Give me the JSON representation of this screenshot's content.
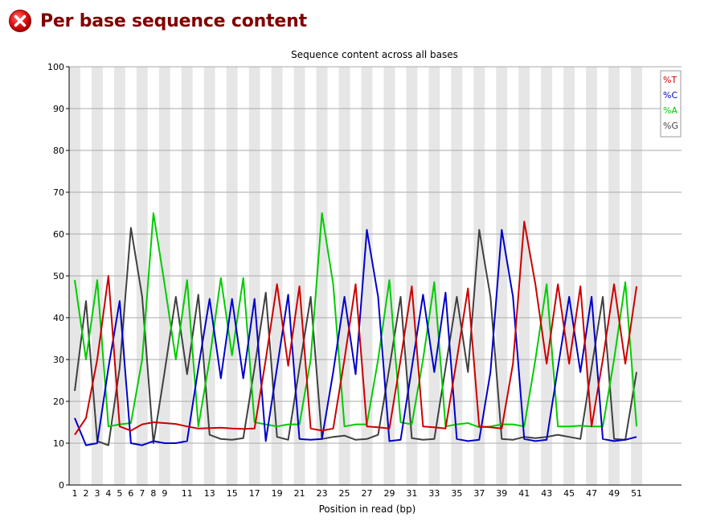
{
  "header": {
    "title": "Per base sequence content",
    "status_icon": "error-icon",
    "status_color": "#cc0000",
    "title_color": "#800000"
  },
  "chart_data": {
    "type": "line",
    "title": "Sequence content across all bases",
    "xlabel": "Position in read (bp)",
    "ylabel": "",
    "ylim": [
      0,
      100
    ],
    "yticks": [
      0,
      10,
      20,
      30,
      40,
      50,
      60,
      70,
      80,
      90,
      100
    ],
    "x": [
      1,
      2,
      3,
      4,
      5,
      6,
      7,
      8,
      9,
      10,
      11,
      12,
      13,
      14,
      15,
      16,
      17,
      18,
      19,
      20,
      21,
      22,
      23,
      24,
      25,
      26,
      27,
      28,
      29,
      30,
      31,
      32,
      33,
      34,
      35,
      36,
      37,
      38,
      39,
      40,
      41,
      42,
      43,
      44,
      45,
      46,
      47,
      48,
      49,
      50,
      51
    ],
    "xtick_labels": [
      "1",
      "2",
      "3",
      "4",
      "5",
      "6",
      "7",
      "8",
      "9",
      "11",
      "13",
      "15",
      "17",
      "19",
      "21",
      "23",
      "25",
      "27",
      "29",
      "31",
      "33",
      "35",
      "37",
      "39",
      "41",
      "43",
      "45",
      "47",
      "49",
      "51"
    ],
    "xtick_positions": [
      1,
      2,
      3,
      4,
      5,
      6,
      7,
      8,
      9,
      11,
      13,
      15,
      17,
      19,
      21,
      23,
      25,
      27,
      29,
      31,
      33,
      35,
      37,
      39,
      41,
      43,
      45,
      47,
      49,
      51
    ],
    "grid": true,
    "legend_position": "top-right",
    "band_colors": [
      "#e6e6e6",
      "#ffffff"
    ],
    "series": [
      {
        "name": "%T",
        "color": "#cc0000",
        "values": [
          12,
          16,
          30,
          50,
          14,
          13,
          14.5,
          15,
          14.8,
          14.6,
          14,
          13.5,
          13.6,
          13.7,
          13.5,
          13.4,
          13.5,
          30,
          48,
          28.5,
          47.5,
          13.5,
          13,
          13.5,
          30,
          48,
          14,
          13.8,
          13.5,
          30,
          47.5,
          14,
          13.8,
          13.5,
          30,
          47,
          14,
          13.8,
          13.5,
          29,
          63,
          48,
          29,
          48,
          29,
          47.5,
          14,
          30,
          48,
          29,
          47.5
        ]
      },
      {
        "name": "%C",
        "color": "#0000cc",
        "values": [
          16,
          9.5,
          10,
          28,
          44,
          10,
          9.5,
          10.5,
          10,
          10,
          10.5,
          28,
          44.5,
          25.5,
          44.5,
          25.5,
          44.5,
          10.5,
          28,
          45.5,
          11,
          10.8,
          11,
          27,
          45,
          26.5,
          61,
          45,
          10.5,
          10.8,
          28,
          45.5,
          27,
          46,
          11,
          10.5,
          10.8,
          27,
          61,
          45,
          11,
          10.5,
          10.8,
          28,
          45,
          27,
          45,
          11,
          10.5,
          10.8,
          11.5
        ]
      },
      {
        "name": "%A",
        "color": "#00cc00",
        "values": [
          49,
          30,
          49,
          14,
          14.5,
          14.8,
          30,
          65,
          48,
          30,
          49,
          14,
          30,
          49.5,
          31,
          49.5,
          15,
          14.5,
          14,
          14.5,
          14.5,
          30,
          65,
          48,
          14,
          14.5,
          14.5,
          30,
          49,
          15,
          14.5,
          30,
          48.5,
          14,
          14.5,
          14.8,
          13.8,
          14,
          14.5,
          14.5,
          14,
          30,
          48,
          14,
          14,
          14.2,
          14,
          14,
          30,
          48.5,
          14
        ]
      },
      {
        "name": "%G",
        "color": "#404040",
        "values": [
          22.5,
          44,
          10.5,
          9.5,
          28,
          61.5,
          45,
          10,
          27,
          45,
          26.5,
          45.5,
          12,
          11,
          10.8,
          11.2,
          28,
          46,
          11.5,
          10.8,
          28,
          45,
          11,
          11.5,
          11.8,
          10.8,
          11,
          12,
          28,
          45,
          11.2,
          10.8,
          11,
          28,
          45,
          27,
          61,
          45,
          11,
          10.8,
          11.5,
          11.2,
          11.5,
          12,
          11.5,
          11,
          28,
          45,
          11,
          10.8,
          27
        ]
      }
    ]
  }
}
